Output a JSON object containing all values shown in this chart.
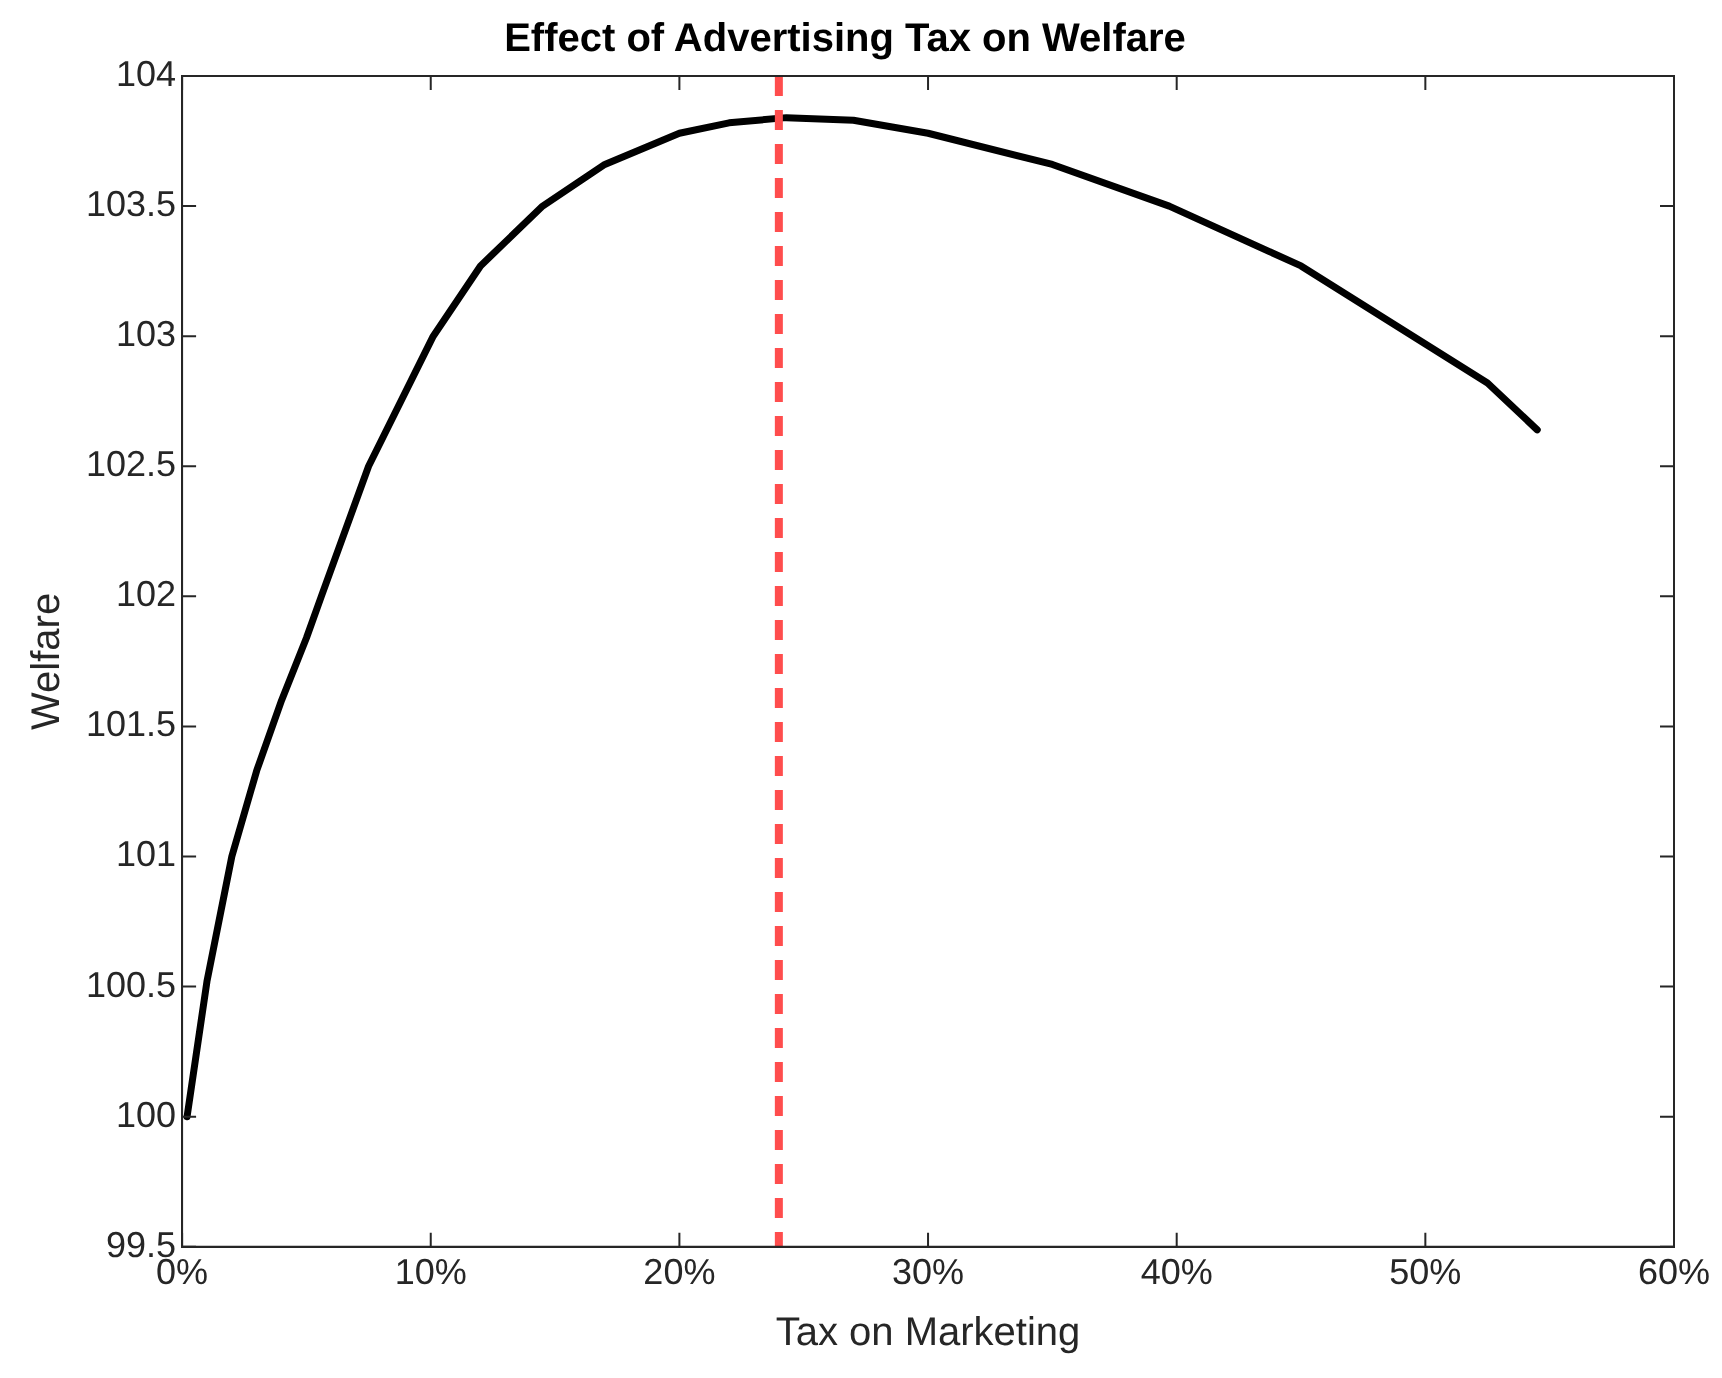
{
  "chart_data": {
    "type": "line",
    "title": "Effect of Advertising Tax on Welfare",
    "xlabel": "Tax on Marketing",
    "ylabel": "Welfare",
    "x": [
      0.2,
      1,
      2,
      3,
      4,
      5,
      5.6,
      7.5,
      10.1,
      12,
      14.5,
      17,
      20,
      22,
      24.3,
      27,
      30,
      35,
      39.7,
      45,
      50,
      52.5,
      54.5
    ],
    "series": [
      {
        "color": "#000000",
        "values": [
          100.0,
          100.52,
          101.0,
          101.33,
          101.6,
          101.84,
          102.0,
          102.5,
          103.0,
          103.27,
          103.5,
          103.66,
          103.78,
          103.82,
          103.84,
          103.83,
          103.78,
          103.66,
          103.5,
          103.27,
          102.97,
          102.82,
          102.64
        ]
      }
    ],
    "xlim": [
      0,
      60
    ],
    "xticks": [
      {
        "value": 0,
        "label": "0%"
      },
      {
        "value": 10,
        "label": "10%"
      },
      {
        "value": 20,
        "label": "20%"
      },
      {
        "value": 30,
        "label": "30%"
      },
      {
        "value": 40,
        "label": "40%"
      },
      {
        "value": 50,
        "label": "50%"
      },
      {
        "value": 60,
        "label": "60%"
      }
    ],
    "ylim": [
      99.5,
      104
    ],
    "yticks": [
      99.5,
      100,
      100.5,
      101,
      101.5,
      102,
      102.5,
      103,
      103.5,
      104
    ],
    "ref_lines": [
      {
        "axis": "x",
        "value": 24,
        "color": "#ff4d4d",
        "line_style": "dashed"
      }
    ],
    "grid": false,
    "legend": false,
    "marker": "none",
    "line_style": "solid"
  }
}
